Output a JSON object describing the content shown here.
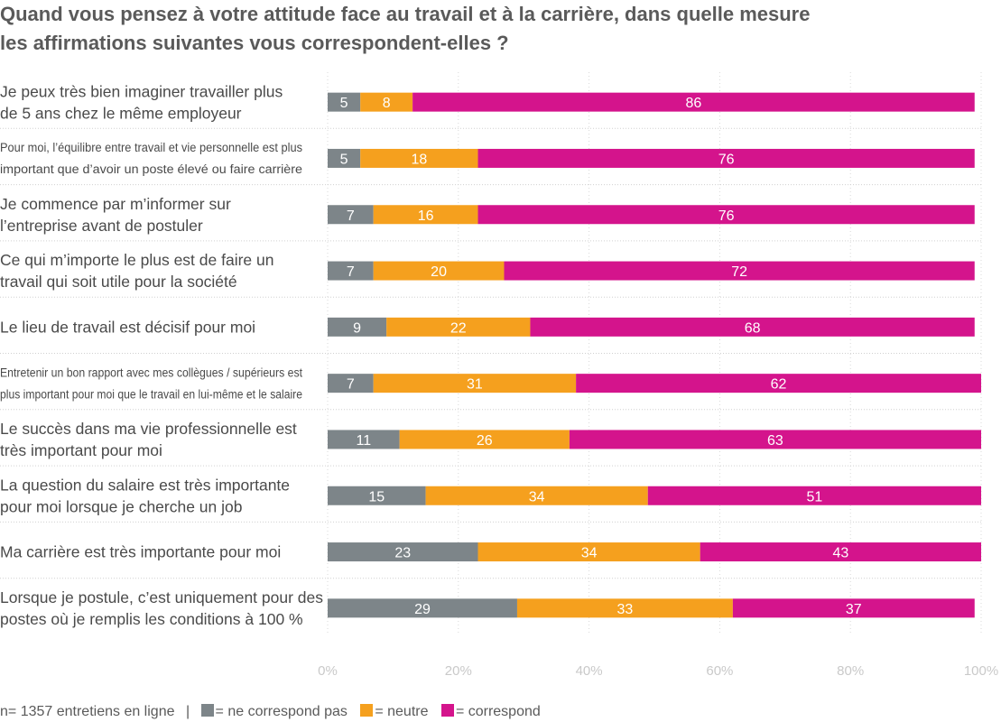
{
  "chart_data": {
    "type": "bar",
    "orientation": "horizontal",
    "stacked": true,
    "title_lines": [
      "Quand vous pensez à votre attitude face au travail et à la carrière, dans quelle mesure",
      "les affirmations suivantes vous correspondent-elles ?"
    ],
    "categories": [
      [
        "Je peux très bien imaginer travailler plus",
        "de 5 ans chez le même employeur"
      ],
      [
        "Pour moi, l’équilibre entre travail et vie personnelle est plus",
        "important que d’avoir un poste élevé ou faire carrière"
      ],
      [
        "Je commence par m’informer sur",
        "l’entreprise avant de postuler"
      ],
      [
        "Ce qui m’importe le plus est de faire un",
        "travail qui soit utile pour la société"
      ],
      [
        "Le lieu de travail est décisif pour moi"
      ],
      [
        "Entretenir un bon rapport avec mes collègues / supérieurs est",
        "plus important pour moi que le travail en lui-même et le salaire"
      ],
      [
        "Le succès dans ma vie professionnelle est",
        "très important pour moi"
      ],
      [
        "La question du salaire est très importante",
        "pour moi lorsque je cherche un job"
      ],
      [
        "Ma carrière est très importante pour moi"
      ],
      [
        "Lorsque je postule, c’est uniquement pour des",
        "postes où je remplis les conditions à 100 %"
      ]
    ],
    "small_label_rows": [
      1,
      5
    ],
    "series": [
      {
        "name": "ne correspond pas",
        "color": "#7d8589",
        "values": [
          5,
          5,
          7,
          7,
          9,
          7,
          11,
          15,
          23,
          29
        ]
      },
      {
        "name": "neutre",
        "color": "#f5a01e",
        "values": [
          8,
          18,
          16,
          20,
          22,
          31,
          26,
          34,
          34,
          33
        ]
      },
      {
        "name": "correspond",
        "color": "#d4148c",
        "values": [
          86,
          76,
          76,
          72,
          68,
          62,
          63,
          51,
          43,
          37
        ]
      }
    ],
    "xlim": [
      0,
      100
    ],
    "xticks": [
      "0%",
      "20%",
      "40%",
      "60%",
      "80%",
      "100%"
    ],
    "grid": true
  },
  "legend": {
    "note": "n= 1357 entretiens en ligne",
    "separator": "|",
    "items": [
      {
        "label": "= ne correspond pas",
        "color": "#7d8589"
      },
      {
        "label": "= neutre",
        "color": "#f5a01e"
      },
      {
        "label": "= correspond",
        "color": "#d4148c"
      }
    ]
  }
}
